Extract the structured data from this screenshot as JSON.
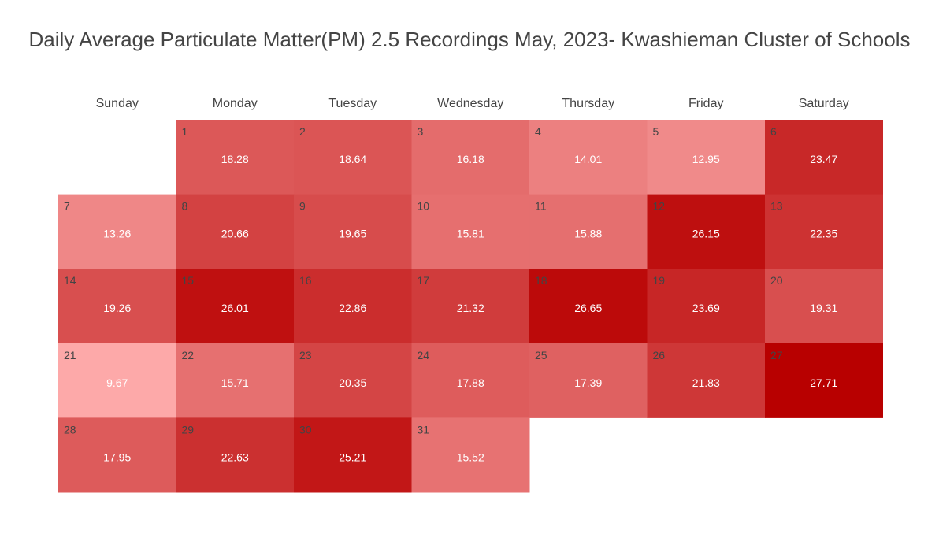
{
  "chart_data": {
    "type": "heatmap",
    "title": "Daily Average Particulate Matter(PM) 2.5 Recordings May, 2023- Kwashieman Cluster of Schools",
    "weekdays": [
      "Sunday",
      "Monday",
      "Tuesday",
      "Wednesday",
      "Thursday",
      "Friday",
      "Saturday"
    ],
    "first_weekday_index": 1,
    "days": [
      1,
      2,
      3,
      4,
      5,
      6,
      7,
      8,
      9,
      10,
      11,
      12,
      13,
      14,
      15,
      16,
      17,
      18,
      19,
      20,
      21,
      22,
      23,
      24,
      25,
      26,
      27,
      28,
      29,
      30,
      31
    ],
    "values": [
      18.28,
      18.64,
      16.18,
      14.01,
      12.95,
      23.47,
      13.26,
      20.66,
      19.65,
      15.81,
      15.88,
      26.15,
      22.35,
      19.26,
      26.01,
      22.86,
      21.32,
      26.65,
      23.69,
      19.31,
      9.67,
      15.71,
      20.35,
      17.88,
      17.39,
      21.83,
      27.71,
      17.95,
      22.63,
      25.21,
      15.52
    ],
    "color_scale": {
      "low_color": "#fda9a9",
      "high_color": "#b80000"
    },
    "grid": false,
    "legend": "none"
  }
}
